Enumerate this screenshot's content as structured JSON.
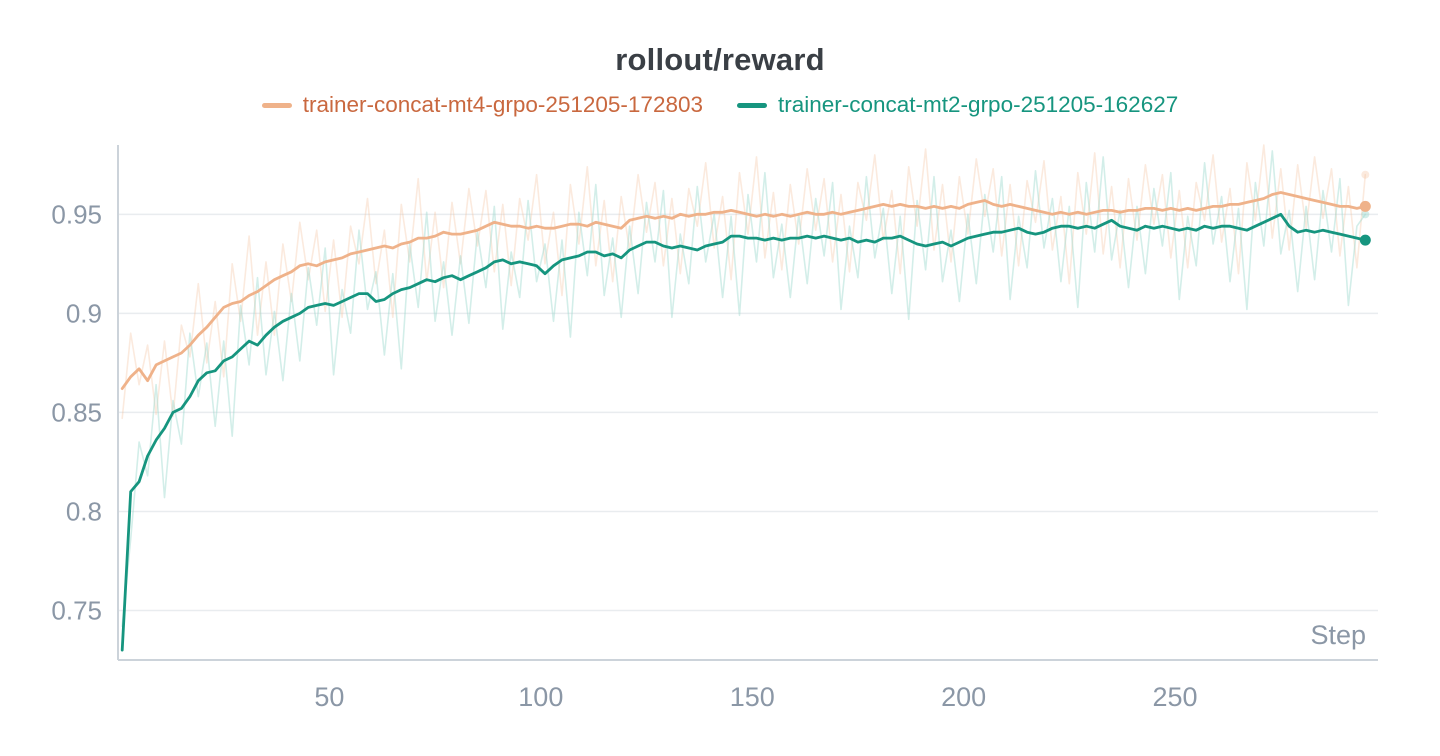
{
  "chart_data": {
    "type": "line",
    "title": "rollout/reward",
    "xlabel": "Step",
    "ylabel": "",
    "xlim": [
      0,
      298
    ],
    "ylim": [
      0.725,
      0.985
    ],
    "x_ticks": [
      50,
      100,
      150,
      200,
      250
    ],
    "y_ticks": [
      0.75,
      0.8,
      0.85,
      0.9,
      0.95
    ],
    "y_tick_labels": [
      "0.75",
      "0.8",
      "0.85",
      "0.9",
      "0.95"
    ],
    "grid": "horizontal",
    "legend_position": "top-center",
    "colors": {
      "grid": "#e9ecef",
      "axis": "#ccd3da",
      "tick_text": "#8b97a6",
      "title_text": "#3a3f45",
      "background": "#ffffff"
    },
    "x": [
      1,
      3,
      5,
      7,
      9,
      11,
      13,
      15,
      17,
      19,
      21,
      23,
      25,
      27,
      29,
      31,
      33,
      35,
      37,
      39,
      41,
      43,
      45,
      47,
      49,
      51,
      53,
      55,
      57,
      59,
      61,
      63,
      65,
      67,
      69,
      71,
      73,
      75,
      77,
      79,
      81,
      83,
      85,
      87,
      89,
      91,
      93,
      95,
      97,
      99,
      101,
      103,
      105,
      107,
      109,
      111,
      113,
      115,
      117,
      119,
      121,
      123,
      125,
      127,
      129,
      131,
      133,
      135,
      137,
      139,
      141,
      143,
      145,
      147,
      149,
      151,
      153,
      155,
      157,
      159,
      161,
      163,
      165,
      167,
      169,
      171,
      173,
      175,
      177,
      179,
      181,
      183,
      185,
      187,
      189,
      191,
      193,
      195,
      197,
      199,
      201,
      203,
      205,
      207,
      209,
      211,
      213,
      215,
      217,
      219,
      221,
      223,
      225,
      227,
      229,
      231,
      233,
      235,
      237,
      239,
      241,
      243,
      245,
      247,
      249,
      251,
      253,
      255,
      257,
      259,
      261,
      263,
      265,
      267,
      269,
      271,
      273,
      275,
      277,
      279,
      281,
      283,
      285,
      287,
      289,
      291,
      293,
      295
    ],
    "series": [
      {
        "name": "trainer-concat-mt4-grpo-251205-172803",
        "role": "smoothed",
        "color": "#efb28a",
        "text_color": "#c9683f",
        "opacity": 1,
        "values": [
          0.862,
          0.868,
          0.872,
          0.866,
          0.874,
          0.876,
          0.878,
          0.88,
          0.884,
          0.889,
          0.893,
          0.898,
          0.903,
          0.905,
          0.906,
          0.909,
          0.911,
          0.914,
          0.917,
          0.919,
          0.921,
          0.924,
          0.925,
          0.924,
          0.926,
          0.927,
          0.928,
          0.93,
          0.931,
          0.932,
          0.933,
          0.934,
          0.933,
          0.935,
          0.936,
          0.938,
          0.938,
          0.939,
          0.941,
          0.94,
          0.94,
          0.941,
          0.942,
          0.944,
          0.946,
          0.945,
          0.944,
          0.944,
          0.943,
          0.944,
          0.943,
          0.943,
          0.944,
          0.945,
          0.945,
          0.944,
          0.946,
          0.945,
          0.944,
          0.943,
          0.947,
          0.948,
          0.949,
          0.948,
          0.949,
          0.948,
          0.95,
          0.949,
          0.95,
          0.95,
          0.951,
          0.951,
          0.952,
          0.951,
          0.95,
          0.949,
          0.95,
          0.949,
          0.95,
          0.949,
          0.95,
          0.951,
          0.95,
          0.95,
          0.951,
          0.95,
          0.951,
          0.952,
          0.953,
          0.954,
          0.955,
          0.954,
          0.955,
          0.954,
          0.954,
          0.953,
          0.954,
          0.953,
          0.954,
          0.953,
          0.955,
          0.956,
          0.957,
          0.955,
          0.954,
          0.955,
          0.954,
          0.953,
          0.952,
          0.951,
          0.95,
          0.951,
          0.95,
          0.951,
          0.95,
          0.951,
          0.952,
          0.952,
          0.951,
          0.952,
          0.952,
          0.953,
          0.953,
          0.952,
          0.953,
          0.952,
          0.953,
          0.952,
          0.953,
          0.954,
          0.954,
          0.955,
          0.955,
          0.956,
          0.957,
          0.958,
          0.96,
          0.961,
          0.96,
          0.959,
          0.958,
          0.957,
          0.956,
          0.955,
          0.954,
          0.954,
          0.953,
          0.954
        ]
      },
      {
        "name": "trainer-concat-mt2-grpo-251205-162627",
        "role": "smoothed",
        "color": "#16957f",
        "text_color": "#16957f",
        "opacity": 1,
        "values": [
          0.73,
          0.81,
          0.815,
          0.828,
          0.836,
          0.842,
          0.85,
          0.852,
          0.858,
          0.866,
          0.87,
          0.871,
          0.876,
          0.878,
          0.882,
          0.886,
          0.884,
          0.889,
          0.893,
          0.896,
          0.898,
          0.9,
          0.903,
          0.904,
          0.905,
          0.904,
          0.906,
          0.908,
          0.91,
          0.91,
          0.906,
          0.907,
          0.91,
          0.912,
          0.913,
          0.915,
          0.917,
          0.916,
          0.918,
          0.919,
          0.917,
          0.919,
          0.921,
          0.923,
          0.926,
          0.927,
          0.925,
          0.926,
          0.925,
          0.924,
          0.92,
          0.924,
          0.927,
          0.928,
          0.929,
          0.931,
          0.931,
          0.929,
          0.93,
          0.928,
          0.932,
          0.934,
          0.936,
          0.936,
          0.934,
          0.933,
          0.934,
          0.933,
          0.932,
          0.934,
          0.935,
          0.936,
          0.939,
          0.939,
          0.938,
          0.938,
          0.937,
          0.938,
          0.937,
          0.938,
          0.938,
          0.939,
          0.938,
          0.939,
          0.938,
          0.937,
          0.938,
          0.936,
          0.937,
          0.936,
          0.938,
          0.938,
          0.939,
          0.937,
          0.935,
          0.934,
          0.935,
          0.936,
          0.934,
          0.936,
          0.938,
          0.939,
          0.94,
          0.941,
          0.941,
          0.942,
          0.943,
          0.941,
          0.94,
          0.941,
          0.943,
          0.944,
          0.944,
          0.943,
          0.944,
          0.943,
          0.945,
          0.947,
          0.944,
          0.943,
          0.942,
          0.944,
          0.943,
          0.944,
          0.943,
          0.942,
          0.943,
          0.942,
          0.944,
          0.943,
          0.944,
          0.944,
          0.943,
          0.942,
          0.944,
          0.946,
          0.948,
          0.95,
          0.944,
          0.941,
          0.942,
          0.941,
          0.942,
          0.941,
          0.94,
          0.939,
          0.938,
          0.937
        ]
      },
      {
        "name": "trainer-concat-mt4-grpo-251205-172803",
        "role": "raw",
        "color": "#f3c3a1",
        "text_color": "#c9683f",
        "opacity": 0.35,
        "values": [
          0.847,
          0.89,
          0.864,
          0.884,
          0.849,
          0.886,
          0.848,
          0.894,
          0.878,
          0.915,
          0.875,
          0.906,
          0.868,
          0.925,
          0.896,
          0.939,
          0.889,
          0.926,
          0.889,
          0.935,
          0.906,
          0.946,
          0.917,
          0.942,
          0.901,
          0.937,
          0.898,
          0.944,
          0.925,
          0.958,
          0.915,
          0.942,
          0.898,
          0.955,
          0.926,
          0.968,
          0.916,
          0.951,
          0.913,
          0.956,
          0.925,
          0.963,
          0.934,
          0.962,
          0.921,
          0.955,
          0.914,
          0.958,
          0.937,
          0.97,
          0.925,
          0.951,
          0.909,
          0.965,
          0.935,
          0.974,
          0.924,
          0.957,
          0.916,
          0.959,
          0.932,
          0.97,
          0.941,
          0.966,
          0.924,
          0.958,
          0.92,
          0.963,
          0.944,
          0.976,
          0.933,
          0.959,
          0.917,
          0.971,
          0.94,
          0.979,
          0.928,
          0.961,
          0.922,
          0.965,
          0.935,
          0.973,
          0.942,
          0.968,
          0.926,
          0.96,
          0.921,
          0.966,
          0.947,
          0.98,
          0.937,
          0.962,
          0.92,
          0.974,
          0.944,
          0.983,
          0.932,
          0.965,
          0.926,
          0.969,
          0.94,
          0.978,
          0.949,
          0.973,
          0.929,
          0.965,
          0.924,
          0.967,
          0.946,
          0.977,
          0.932,
          0.959,
          0.915,
          0.971,
          0.94,
          0.981,
          0.93,
          0.964,
          0.923,
          0.968,
          0.937,
          0.975,
          0.945,
          0.97,
          0.928,
          0.962,
          0.923,
          0.966,
          0.947,
          0.98,
          0.936,
          0.963,
          0.92,
          0.976,
          0.947,
          0.985,
          0.938,
          0.973,
          0.932,
          0.975,
          0.943,
          0.979,
          0.948,
          0.973,
          0.929,
          0.964,
          0.923,
          0.97
        ]
      },
      {
        "name": "trainer-concat-mt2-grpo-251205-162627",
        "role": "raw",
        "color": "#9ed9ce",
        "text_color": "#16957f",
        "opacity": 0.45,
        "values": [
          0.742,
          0.786,
          0.835,
          0.818,
          0.864,
          0.807,
          0.856,
          0.834,
          0.89,
          0.858,
          0.885,
          0.843,
          0.886,
          0.838,
          0.904,
          0.874,
          0.918,
          0.869,
          0.901,
          0.866,
          0.91,
          0.876,
          0.923,
          0.894,
          0.933,
          0.869,
          0.912,
          0.89,
          0.942,
          0.902,
          0.921,
          0.879,
          0.92,
          0.872,
          0.935,
          0.903,
          0.951,
          0.896,
          0.926,
          0.889,
          0.929,
          0.895,
          0.941,
          0.913,
          0.954,
          0.892,
          0.931,
          0.908,
          0.957,
          0.916,
          0.935,
          0.896,
          0.937,
          0.888,
          0.951,
          0.919,
          0.965,
          0.909,
          0.938,
          0.898,
          0.944,
          0.91,
          0.956,
          0.926,
          0.962,
          0.898,
          0.94,
          0.915,
          0.964,
          0.926,
          0.95,
          0.908,
          0.949,
          0.899,
          0.96,
          0.926,
          0.971,
          0.918,
          0.945,
          0.908,
          0.95,
          0.915,
          0.958,
          0.929,
          0.966,
          0.902,
          0.944,
          0.918,
          0.969,
          0.928,
          0.953,
          0.91,
          0.949,
          0.897,
          0.957,
          0.922,
          0.969,
          0.916,
          0.942,
          0.906,
          0.95,
          0.915,
          0.96,
          0.931,
          0.969,
          0.907,
          0.949,
          0.923,
          0.972,
          0.933,
          0.958,
          0.916,
          0.954,
          0.903,
          0.966,
          0.931,
          0.979,
          0.927,
          0.952,
          0.913,
          0.954,
          0.92,
          0.963,
          0.934,
          0.971,
          0.907,
          0.949,
          0.924,
          0.976,
          0.935,
          0.959,
          0.916,
          0.953,
          0.902,
          0.966,
          0.934,
          0.982,
          0.93,
          0.952,
          0.911,
          0.954,
          0.917,
          0.962,
          0.931,
          0.968,
          0.904,
          0.944,
          0.95
        ]
      }
    ]
  }
}
